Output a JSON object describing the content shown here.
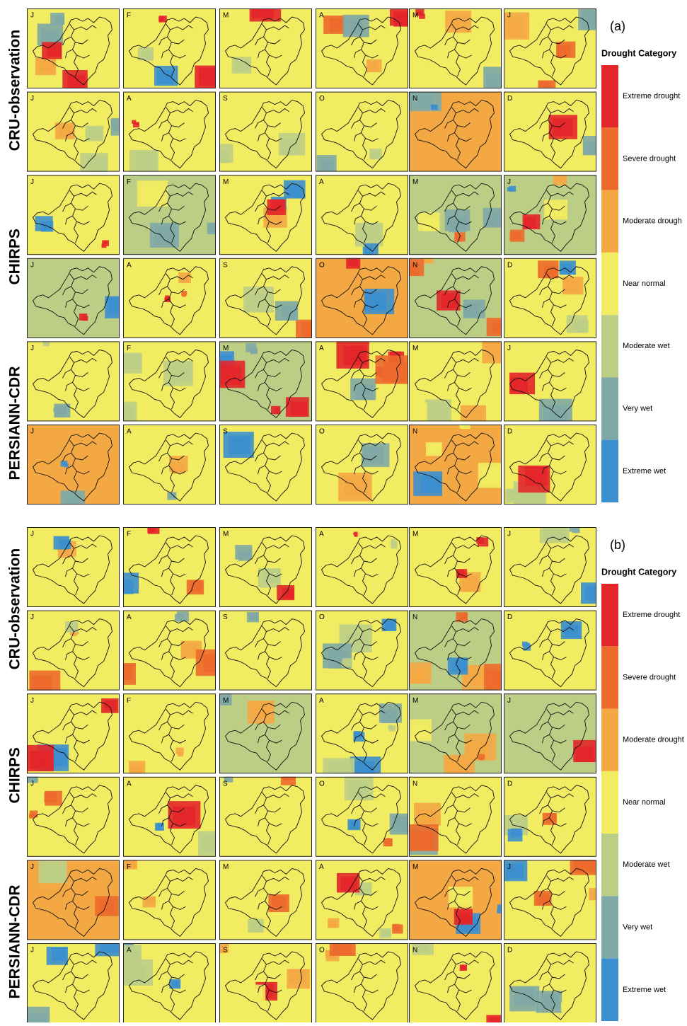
{
  "panels": [
    {
      "label": "(a)",
      "legend_title": "Drought Category",
      "legend": [
        "Extreme drought",
        "Severe drought",
        "Moderate drough",
        "Near normal",
        "Moderate wet",
        "Very wet",
        "Extreme wet"
      ],
      "groups": [
        {
          "name": "CRU-observation",
          "rows": [
            [
              "J",
              "F",
              "M",
              "A",
              "M",
              "J"
            ],
            [
              "J",
              "A",
              "S",
              "O",
              "N",
              "D"
            ]
          ]
        },
        {
          "name": "CHIRPS",
          "rows": [
            [
              "J",
              "F",
              "M",
              "A",
              "M",
              "J"
            ],
            [
              "J",
              "A",
              "S",
              "O",
              "N",
              "D"
            ]
          ]
        },
        {
          "name": "PERSIANN-CDR",
          "rows": [
            [
              "J",
              "F",
              "M",
              "A",
              "M",
              "J"
            ],
            [
              "J",
              "A",
              "S",
              "O",
              "N",
              "D"
            ]
          ]
        }
      ]
    },
    {
      "label": "(b)",
      "legend_title": "Drought Category",
      "legend": [
        "Extreme drought",
        "Severe drought",
        "Moderate drought",
        "Near normal",
        "Moderate wet",
        "Very wet",
        "Extreme wet"
      ],
      "groups": [
        {
          "name": "CRU-observation",
          "rows": [
            [
              "J",
              "F",
              "M",
              "A",
              "M",
              "J"
            ],
            [
              "J",
              "A",
              "S",
              "O",
              "N",
              "D"
            ]
          ]
        },
        {
          "name": "CHIRPS",
          "rows": [
            [
              "J",
              "F",
              "M",
              "A",
              "M",
              "J"
            ],
            [
              "J",
              "A",
              "S",
              "O",
              "N",
              "D"
            ]
          ]
        },
        {
          "name": "PERSIANN-CDR",
          "rows": [
            [
              "J",
              "F",
              "M",
              "A",
              "M",
              "J"
            ],
            [
              "J",
              "A",
              "S",
              "O",
              "N",
              "D"
            ]
          ]
        }
      ]
    }
  ]
}
